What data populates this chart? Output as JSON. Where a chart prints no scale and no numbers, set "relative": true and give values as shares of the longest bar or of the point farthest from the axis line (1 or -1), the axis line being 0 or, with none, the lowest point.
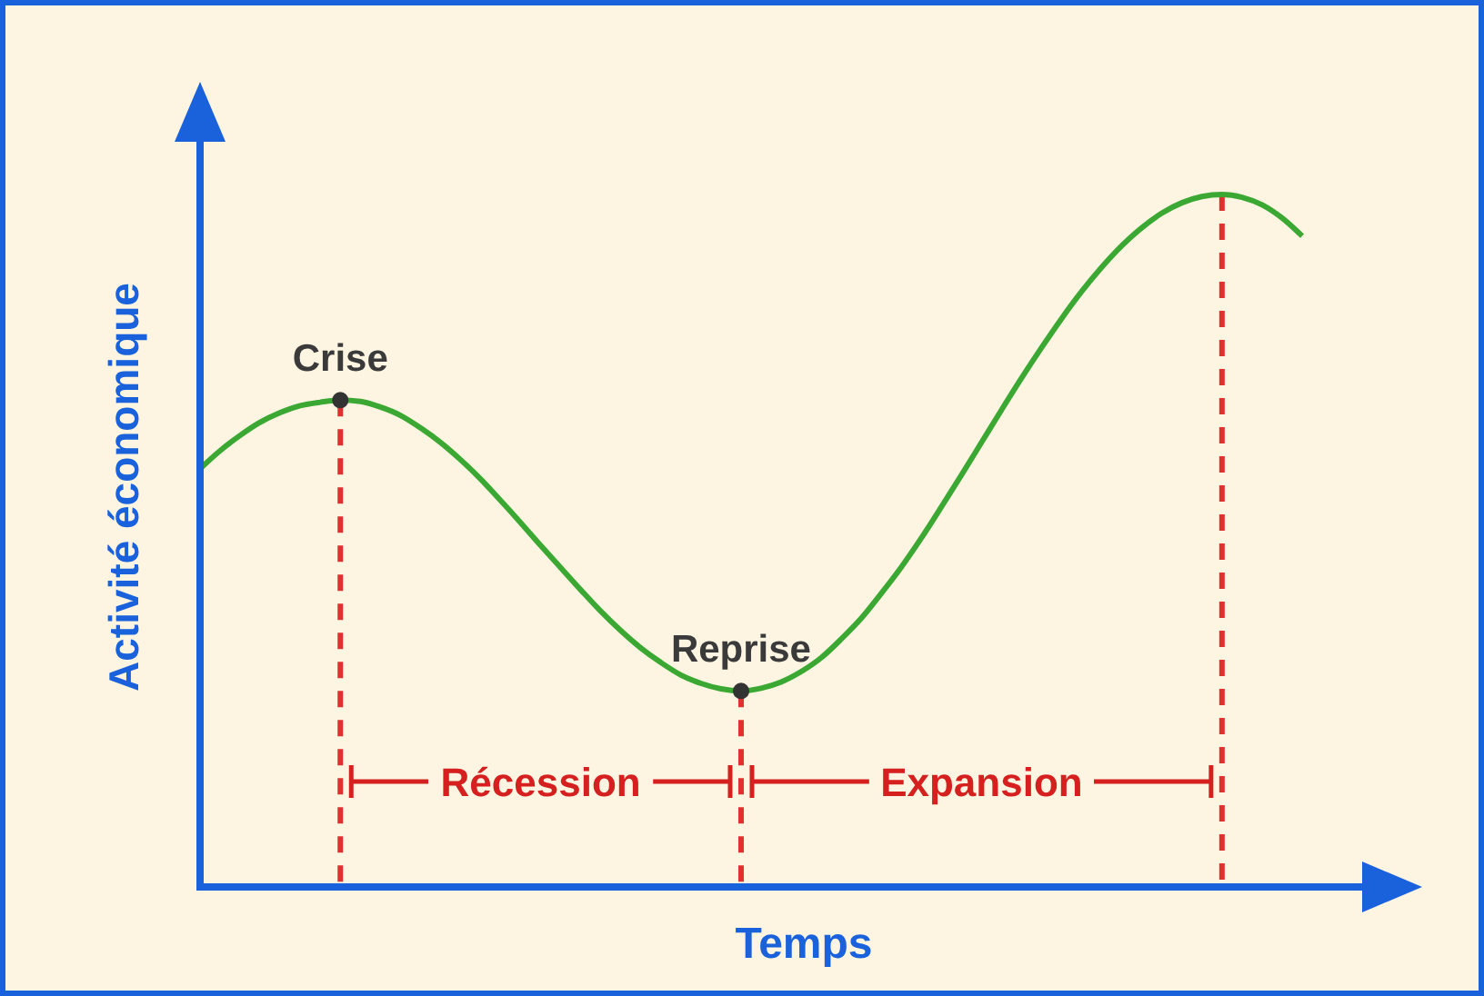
{
  "chart_data": {
    "type": "line",
    "relative": true,
    "xlabel": "Temps",
    "ylabel": "Activité économique",
    "categories": [
      null,
      null,
      null,
      null,
      null,
      null,
      null,
      null,
      null,
      null,
      null,
      null,
      null,
      null,
      null,
      null,
      null,
      null,
      null,
      null,
      null,
      null,
      null,
      null,
      null,
      null,
      null,
      null,
      null,
      null,
      null,
      null,
      null,
      null,
      null,
      null,
      null,
      null,
      null,
      null,
      null,
      null,
      null,
      null,
      null,
      null,
      null,
      null,
      null,
      null,
      null,
      null,
      null,
      null,
      null,
      null
    ],
    "series": [
      {
        "color": "#3aa832",
        "values": [
          0.604,
          0.63,
          0.652,
          0.671,
          0.685,
          0.695,
          0.7,
          0.703,
          0.701,
          0.693,
          0.681,
          0.663,
          0.642,
          0.617,
          0.589,
          0.558,
          0.526,
          0.493,
          0.461,
          0.429,
          0.398,
          0.37,
          0.345,
          0.324,
          0.306,
          0.294,
          0.286,
          0.283,
          0.287,
          0.296,
          0.311,
          0.331,
          0.358,
          0.388,
          0.424,
          0.462,
          0.504,
          0.549,
          0.595,
          0.642,
          0.689,
          0.735,
          0.779,
          0.821,
          0.86,
          0.895,
          0.926,
          0.952,
          0.973,
          0.988,
          0.997,
          1,
          0.996,
          0.985,
          0.966,
          0.94
        ]
      }
    ],
    "annotations": [
      "Crise",
      "Reprise",
      "Récession",
      "Expansion"
    ]
  }
}
